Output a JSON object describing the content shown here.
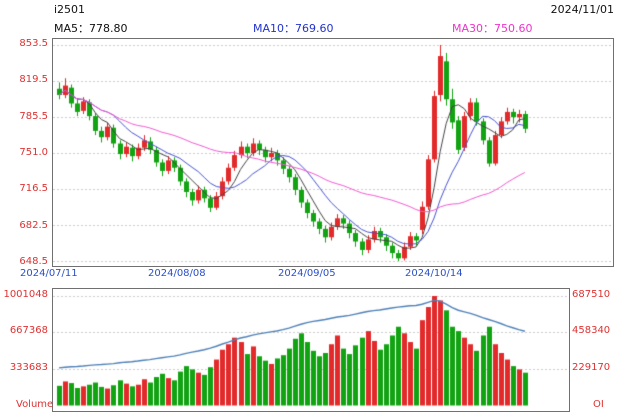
{
  "colors": {
    "up": "#e22a2a",
    "down": "#12a312",
    "ma5_line": "#444444",
    "ma10_line": "#4653d0",
    "ma30_line": "#f05ad0",
    "oi_line": "#4f81b8",
    "grid": "#cccccc",
    "axis_red": "#dd3333",
    "axis_blue": "#2b50c8"
  },
  "chart_data": {
    "type": "candlestick",
    "symbol": "i2501",
    "date": "2024/11/01",
    "ma_display": {
      "ma5": "MA5：778.80",
      "ma10": "MA10：769.60",
      "ma30": "MA30：750.60"
    },
    "ma_values": {
      "ma5": 778.8,
      "ma10": 769.6,
      "ma30": 750.6
    },
    "ma_windows": [
      5,
      10,
      30
    ],
    "labels": {
      "volume": "Volume",
      "oi": "OI"
    },
    "axes": {
      "price_ticks": [
        "853.5",
        "819.5",
        "785.5",
        "751.0",
        "716.5",
        "682.5",
        "648.5"
      ],
      "date_ticks": [
        "2024/07/11",
        "2024/08/08",
        "2024/09/05",
        "2024/10/14"
      ],
      "volume_ticks": [
        "1001048",
        "667368",
        "333683"
      ],
      "oi_ticks": [
        "687510",
        "458340",
        "229170"
      ]
    },
    "candles": {
      "open": [
        812,
        806,
        813,
        798,
        791,
        799,
        786,
        772,
        766,
        775,
        760,
        750,
        756,
        748,
        756,
        762,
        754,
        742,
        734,
        744,
        737,
        724,
        714,
        706,
        716,
        708,
        699,
        710,
        724,
        737,
        749,
        757,
        751,
        760,
        754,
        747,
        751,
        744,
        736,
        728,
        716,
        704,
        694,
        686,
        679,
        671,
        681,
        689,
        684,
        675,
        667,
        659,
        669,
        677,
        671,
        663,
        656,
        651,
        662,
        672,
        678,
        700,
        745,
        806,
        838,
        802,
        782,
        756,
        786,
        799,
        781,
        763,
        741,
        768,
        781,
        790,
        785,
        788
      ],
      "high": [
        818,
        822,
        816,
        803,
        804,
        802,
        789,
        776,
        780,
        778,
        763,
        761,
        759,
        760,
        768,
        766,
        757,
        745,
        748,
        747,
        740,
        727,
        717,
        720,
        719,
        711,
        714,
        728,
        741,
        753,
        762,
        760,
        765,
        763,
        757,
        756,
        754,
        747,
        739,
        731,
        719,
        707,
        697,
        689,
        682,
        685,
        693,
        692,
        687,
        678,
        670,
        673,
        681,
        680,
        674,
        666,
        659,
        666,
        676,
        675,
        705,
        749,
        810,
        853.5,
        846,
        812,
        786,
        790,
        803,
        803,
        784,
        766,
        772,
        785,
        794,
        793,
        792,
        791
      ],
      "low": [
        802,
        803,
        794,
        786,
        788,
        782,
        768,
        761,
        763,
        756,
        745,
        747,
        743,
        745,
        753,
        750,
        738,
        729,
        731,
        733,
        720,
        709,
        701,
        703,
        704,
        695,
        697,
        707,
        721,
        734,
        746,
        746,
        748,
        749,
        742,
        743,
        739,
        731,
        723,
        711,
        699,
        689,
        681,
        674,
        666,
        668,
        678,
        679,
        670,
        662,
        654,
        656,
        666,
        666,
        658,
        651,
        648.5,
        649,
        659,
        663,
        674,
        697,
        742,
        800,
        796,
        774,
        750,
        753,
        782,
        777,
        759,
        738,
        739,
        765,
        778,
        779,
        780,
        770
      ],
      "close": [
        806,
        815,
        798,
        790,
        800,
        786,
        772,
        766,
        776,
        760,
        750,
        757,
        748,
        756,
        763,
        754,
        742,
        734,
        744,
        737,
        724,
        714,
        706,
        716,
        708,
        699,
        710,
        724,
        737,
        749,
        757,
        751,
        760,
        754,
        747,
        751,
        744,
        736,
        728,
        716,
        704,
        694,
        686,
        679,
        671,
        681,
        689,
        684,
        675,
        667,
        659,
        669,
        677,
        671,
        663,
        656,
        651,
        662,
        672,
        668,
        700,
        745,
        805,
        843,
        802,
        780,
        754,
        786,
        799,
        781,
        763,
        741,
        768,
        781,
        790,
        785,
        788,
        774
      ]
    },
    "volume": {
      "values": [
        180000,
        220000,
        205000,
        160000,
        175000,
        190000,
        210000,
        170000,
        155000,
        185000,
        230000,
        200000,
        175000,
        190000,
        240000,
        210000,
        260000,
        290000,
        250000,
        230000,
        310000,
        360000,
        330000,
        300000,
        280000,
        350000,
        420000,
        510000,
        560000,
        620000,
        580000,
        470000,
        540000,
        450000,
        410000,
        380000,
        430000,
        460000,
        520000,
        610000,
        660000,
        580000,
        500000,
        450000,
        480000,
        560000,
        640000,
        520000,
        470000,
        550000,
        620000,
        680000,
        590000,
        510000,
        560000,
        640000,
        720000,
        660000,
        580000,
        520000,
        780000,
        900000,
        1001048,
        960000,
        870000,
        720000,
        680000,
        620000,
        560000,
        500000,
        640000,
        720000,
        560000,
        480000,
        420000,
        360000,
        330000,
        300000
      ]
    },
    "open_interest": {
      "values": [
        236000,
        240000,
        243000,
        245000,
        248000,
        252000,
        255000,
        257000,
        260000,
        263000,
        268000,
        272000,
        275000,
        279000,
        284000,
        288000,
        294000,
        300000,
        305000,
        310000,
        318000,
        327000,
        335000,
        342000,
        350000,
        360000,
        372000,
        386000,
        398000,
        412000,
        424000,
        432000,
        442000,
        450000,
        456000,
        462000,
        468000,
        476000,
        486000,
        498000,
        510000,
        520000,
        528000,
        534000,
        540000,
        548000,
        556000,
        560000,
        566000,
        574000,
        582000,
        590000,
        596000,
        600000,
        606000,
        612000,
        618000,
        622000,
        626000,
        628000,
        636000,
        648000,
        660000,
        655000,
        636000,
        615000,
        598000,
        588000,
        578000,
        566000,
        552000,
        540000,
        528000,
        515000,
        500000,
        488000,
        476000,
        466000
      ]
    }
  }
}
